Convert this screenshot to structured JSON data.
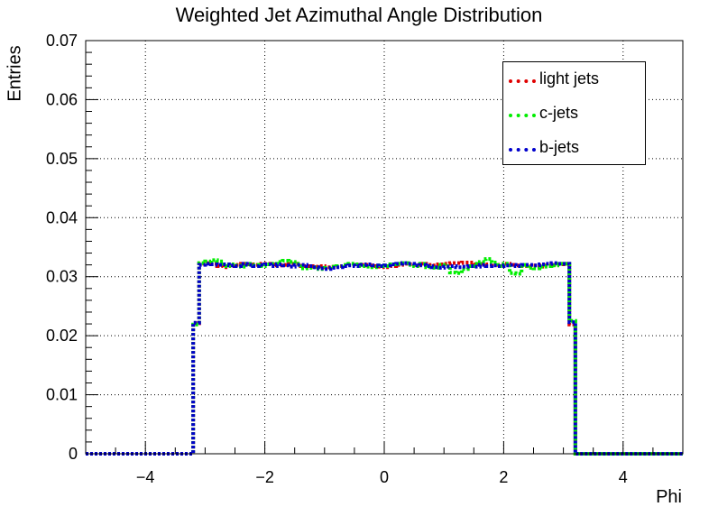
{
  "chart_data": {
    "type": "line",
    "title": "Weighted Jet Azimuthal Angle Distribution",
    "xlabel": "Phi",
    "ylabel": "Entries",
    "xlim": [
      -5,
      5
    ],
    "ylim": [
      0,
      0.07
    ],
    "grid": true,
    "legend_position": "top-right",
    "x_ticks": [
      -4,
      -2,
      0,
      2,
      4
    ],
    "y_ticks": [
      0,
      0.01,
      0.02,
      0.03,
      0.04,
      0.05,
      0.06,
      0.07
    ],
    "x_tick_labels": [
      "−4",
      "−2",
      "0",
      "2",
      "4"
    ],
    "y_tick_labels": [
      "0",
      "0.01",
      "0.02",
      "0.03",
      "0.04",
      "0.05",
      "0.06",
      "0.07"
    ],
    "bin_edges": [
      -5.0,
      -4.9,
      -4.8,
      -4.7,
      -4.6,
      -4.5,
      -4.4,
      -4.3,
      -4.2,
      -4.1,
      -4.0,
      -3.9,
      -3.8,
      -3.7,
      -3.6,
      -3.5,
      -3.4,
      -3.3,
      -3.2,
      -3.1,
      -3.0,
      -2.9,
      -2.8,
      -2.7,
      -2.6,
      -2.5,
      -2.4,
      -2.3,
      -2.2,
      -2.1,
      -2.0,
      -1.9,
      -1.8,
      -1.7,
      -1.6,
      -1.5,
      -1.4,
      -1.3,
      -1.2,
      -1.1,
      -1.0,
      -0.9,
      -0.8,
      -0.7,
      -0.6,
      -0.5,
      -0.4,
      -0.3,
      -0.2,
      -0.1,
      0.0,
      0.1,
      0.2,
      0.3,
      0.4,
      0.5,
      0.6,
      0.7,
      0.8,
      0.9,
      1.0,
      1.1,
      1.2,
      1.3,
      1.4,
      1.5,
      1.6,
      1.7,
      1.8,
      1.9,
      2.0,
      2.1,
      2.2,
      2.3,
      2.4,
      2.5,
      2.6,
      2.7,
      2.8,
      2.9,
      3.0,
      3.1,
      3.2,
      3.3,
      3.4,
      3.5,
      3.6,
      3.7,
      3.8,
      3.9,
      4.0,
      4.1,
      4.2,
      4.3,
      4.4,
      4.5,
      4.6,
      4.7,
      4.8,
      4.9,
      5.0
    ],
    "series": [
      {
        "name": "light jets",
        "color": "#e00000",
        "values": [
          0,
          0,
          0,
          0,
          0,
          0,
          0,
          0,
          0,
          0,
          0,
          0,
          0,
          0,
          0,
          0,
          0,
          0,
          0.0221,
          0.0322,
          0.0323,
          0.0322,
          0.0318,
          0.0316,
          0.0318,
          0.032,
          0.0322,
          0.0321,
          0.032,
          0.0322,
          0.0322,
          0.0321,
          0.0319,
          0.032,
          0.0322,
          0.0322,
          0.0318,
          0.0318,
          0.0317,
          0.0318,
          0.0316,
          0.0317,
          0.0318,
          0.0319,
          0.032,
          0.032,
          0.032,
          0.0319,
          0.0318,
          0.0317,
          0.0316,
          0.0318,
          0.032,
          0.0322,
          0.0321,
          0.032,
          0.0322,
          0.032,
          0.0319,
          0.0321,
          0.0322,
          0.0323,
          0.0323,
          0.0324,
          0.0324,
          0.0321,
          0.0322,
          0.0321,
          0.0322,
          0.032,
          0.0322,
          0.032,
          0.0319,
          0.0318,
          0.0318,
          0.0319,
          0.0317,
          0.0319,
          0.032,
          0.0321,
          0.0322,
          0.0219,
          0,
          0,
          0,
          0,
          0,
          0,
          0,
          0,
          0,
          0,
          0,
          0,
          0,
          0,
          0,
          0,
          0,
          0
        ]
      },
      {
        "name": "c-jets",
        "color": "#00ee00",
        "values": [
          0,
          0,
          0,
          0,
          0,
          0,
          0,
          0,
          0,
          0,
          0,
          0,
          0,
          0,
          0,
          0,
          0,
          0,
          0.0219,
          0.0323,
          0.0326,
          0.0328,
          0.0326,
          0.0318,
          0.0321,
          0.0319,
          0.0317,
          0.0322,
          0.032,
          0.0318,
          0.0321,
          0.0322,
          0.0325,
          0.0327,
          0.0325,
          0.0322,
          0.0314,
          0.0315,
          0.0316,
          0.0313,
          0.0315,
          0.0317,
          0.0318,
          0.032,
          0.0322,
          0.0321,
          0.0318,
          0.0317,
          0.0316,
          0.0319,
          0.0318,
          0.0321,
          0.0322,
          0.0323,
          0.032,
          0.0318,
          0.0322,
          0.0316,
          0.0315,
          0.032,
          0.0318,
          0.0307,
          0.0306,
          0.0313,
          0.0318,
          0.0322,
          0.0325,
          0.033,
          0.0324,
          0.0318,
          0.0322,
          0.0306,
          0.0305,
          0.032,
          0.0315,
          0.0314,
          0.0317,
          0.0318,
          0.0319,
          0.0322,
          0.0322,
          0.0225,
          0,
          0,
          0,
          0,
          0,
          0,
          0,
          0,
          0,
          0,
          0,
          0,
          0,
          0,
          0,
          0,
          0,
          0
        ]
      },
      {
        "name": "b-jets",
        "color": "#0000cc",
        "values": [
          0,
          0,
          0,
          0,
          0,
          0,
          0,
          0,
          0,
          0,
          0,
          0,
          0,
          0,
          0,
          0,
          0,
          0,
          0.0222,
          0.032,
          0.0322,
          0.0321,
          0.032,
          0.0321,
          0.0319,
          0.0318,
          0.0322,
          0.032,
          0.0318,
          0.032,
          0.0321,
          0.0318,
          0.0321,
          0.0319,
          0.0317,
          0.032,
          0.032,
          0.0318,
          0.0316,
          0.0314,
          0.0313,
          0.0315,
          0.0316,
          0.0318,
          0.0319,
          0.0318,
          0.032,
          0.0321,
          0.0319,
          0.0318,
          0.0319,
          0.0321,
          0.0322,
          0.0323,
          0.0322,
          0.0319,
          0.032,
          0.0318,
          0.0316,
          0.0315,
          0.0317,
          0.0318,
          0.0316,
          0.0317,
          0.0318,
          0.0317,
          0.032,
          0.0318,
          0.0319,
          0.0318,
          0.0319,
          0.032,
          0.0318,
          0.032,
          0.032,
          0.0319,
          0.0321,
          0.0322,
          0.0323,
          0.0322,
          0.0322,
          0.0223,
          0,
          0,
          0,
          0,
          0,
          0,
          0,
          0,
          0,
          0,
          0,
          0,
          0,
          0,
          0,
          0,
          0,
          0
        ]
      }
    ]
  }
}
